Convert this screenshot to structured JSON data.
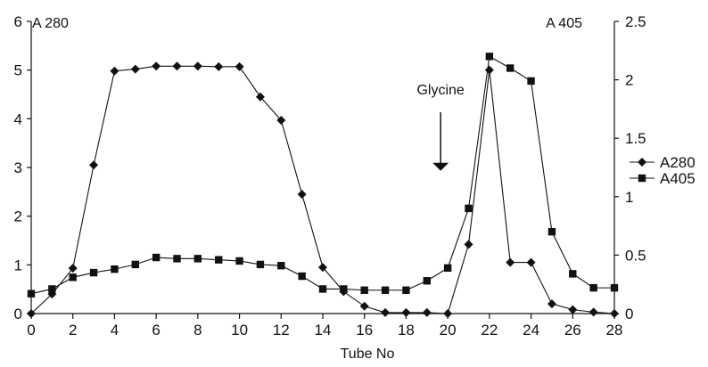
{
  "chart_data": {
    "type": "line",
    "title": "",
    "xlabel": "Tube No",
    "ylabel_left": "A 280",
    "ylabel_right": "A 405",
    "xlim": [
      0,
      28
    ],
    "ylim_left": [
      0,
      6
    ],
    "ylim_right": [
      0,
      2.5
    ],
    "x_ticks": [
      0,
      2,
      4,
      6,
      8,
      10,
      12,
      14,
      16,
      18,
      20,
      22,
      24,
      26,
      28
    ],
    "y_left_ticks": [
      0,
      1,
      2,
      3,
      4,
      5,
      6
    ],
    "y_right_ticks": [
      "0",
      "0.5",
      "1",
      "1.5",
      "2",
      "2.5"
    ],
    "grid": false,
    "legend_position": "right",
    "annotation": {
      "text": "Glycine",
      "x": 20,
      "y_right": 1.45
    },
    "x": [
      0,
      1,
      2,
      3,
      4,
      5,
      6,
      7,
      8,
      9,
      10,
      11,
      12,
      13,
      14,
      15,
      16,
      17,
      18,
      19,
      20,
      21,
      22,
      23,
      24,
      25,
      26,
      27,
      28
    ],
    "series": [
      {
        "name": "A280",
        "axis": "left",
        "marker": "diamond",
        "values": [
          0,
          0.4,
          0.93,
          3.05,
          4.98,
          5.02,
          5.08,
          5.08,
          5.08,
          5.07,
          5.07,
          4.45,
          3.97,
          2.45,
          0.95,
          0.45,
          0.15,
          0.02,
          0.02,
          0.02,
          0,
          1.42,
          5.0,
          1.05,
          1.05,
          0.2,
          0.08,
          0.03,
          0
        ]
      },
      {
        "name": "A405",
        "axis": "right",
        "marker": "square",
        "values": [
          0.17,
          0.21,
          0.31,
          0.35,
          0.38,
          0.42,
          0.48,
          0.47,
          0.47,
          0.46,
          0.45,
          0.42,
          0.41,
          0.32,
          0.21,
          0.21,
          0.2,
          0.2,
          0.2,
          0.28,
          0.39,
          0.9,
          2.2,
          2.1,
          1.99,
          0.7,
          0.34,
          0.22,
          0.22
        ]
      }
    ]
  }
}
